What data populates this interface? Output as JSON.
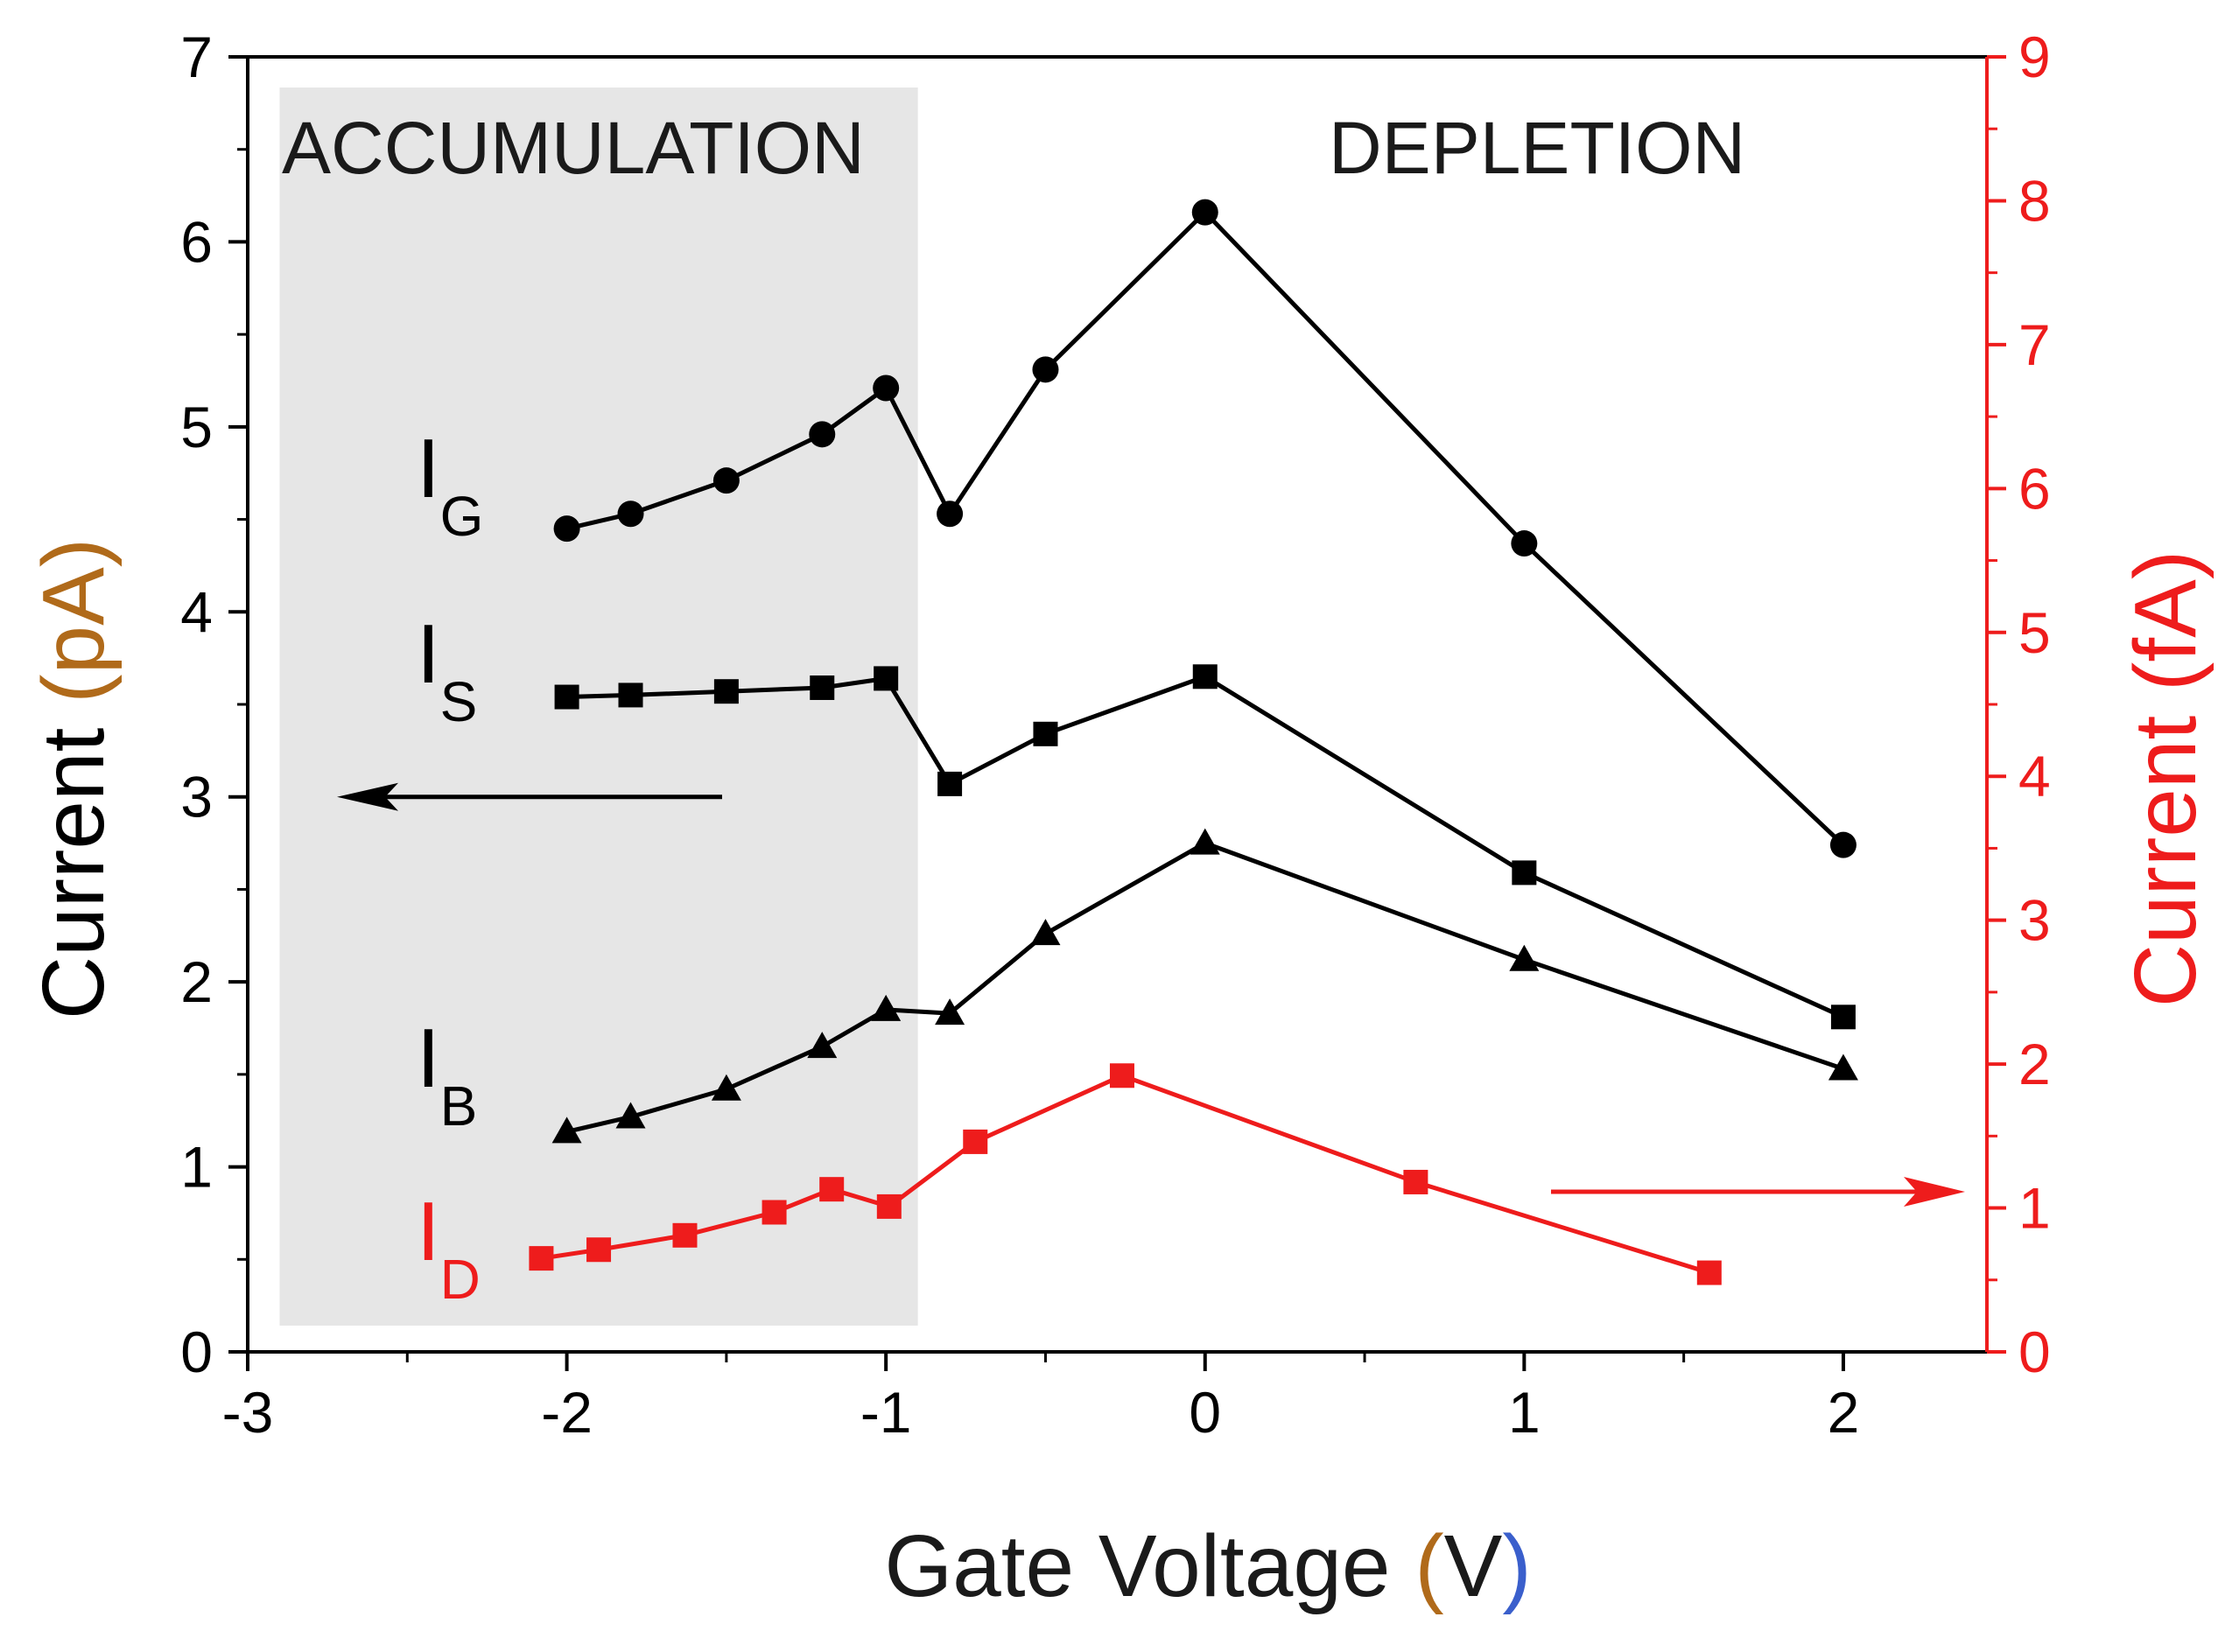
{
  "chart_data": {
    "type": "line",
    "xlabel": {
      "main": "Gate Voltage ",
      "open": "(",
      "unit": "V",
      "close": ")"
    },
    "ylabel_left": {
      "main": "Current ",
      "unit": "(pA)"
    },
    "ylabel_right": {
      "main": "Current ",
      "unit": "(fA)"
    },
    "xlim": [
      -3,
      2.45
    ],
    "ylim_left": [
      0,
      7
    ],
    "ylim_right": [
      0,
      9
    ],
    "x_ticks": [
      -3,
      -2,
      -1,
      0,
      1,
      2
    ],
    "x_tick_labels": [
      "-3",
      "-2",
      "-1",
      "0",
      "1",
      "2"
    ],
    "y_left_ticks": [
      0,
      1,
      2,
      3,
      4,
      5,
      6,
      7
    ],
    "y_left_tick_labels": [
      "0",
      "1",
      "2",
      "3",
      "4",
      "5",
      "6",
      "7"
    ],
    "y_right_ticks": [
      0,
      1,
      2,
      3,
      4,
      5,
      6,
      7,
      8,
      9
    ],
    "y_right_tick_labels": [
      "0",
      "1",
      "2",
      "3",
      "4",
      "5",
      "6",
      "7",
      "8",
      "9"
    ],
    "shaded_region": {
      "label": "ACCUMULATION",
      "x_range": [
        -2.9,
        -0.9
      ],
      "color": "#e6e6e6"
    },
    "region_labels": [
      "ACCUMULATION",
      "DEPLETION"
    ],
    "series": [
      {
        "name": "IG",
        "label_main": "I",
        "label_sub": "G",
        "axis": "left",
        "marker": "circle",
        "color": "#000000",
        "x": [
          -2,
          -1.8,
          -1.5,
          -1.2,
          -1,
          -0.8,
          -0.5,
          0,
          1,
          2
        ],
        "y": [
          4.45,
          4.53,
          4.71,
          4.96,
          5.21,
          4.53,
          5.31,
          6.16,
          4.37,
          2.74
        ]
      },
      {
        "name": "IS",
        "label_main": "I",
        "label_sub": "S",
        "axis": "left",
        "marker": "square",
        "color": "#000000",
        "x": [
          -2,
          -1.8,
          -1.5,
          -1.2,
          -1,
          -0.8,
          -0.5,
          0,
          1,
          2
        ],
        "y": [
          3.54,
          3.55,
          3.57,
          3.59,
          3.64,
          3.07,
          3.34,
          3.65,
          2.59,
          1.81
        ]
      },
      {
        "name": "IB",
        "label_main": "I",
        "label_sub": "B",
        "axis": "left",
        "marker": "triangle",
        "color": "#000000",
        "x": [
          -2,
          -1.8,
          -1.5,
          -1.2,
          -1,
          -0.8,
          -0.5,
          0,
          1,
          2
        ],
        "y": [
          1.19,
          1.27,
          1.42,
          1.65,
          1.85,
          1.83,
          2.26,
          2.75,
          2.12,
          1.53
        ]
      },
      {
        "name": "ID",
        "label_main": "I",
        "label_sub": "D",
        "axis": "right",
        "marker": "square",
        "color": "#ee1c1c",
        "x": [
          -2.08,
          -1.9,
          -1.63,
          -1.35,
          -1.17,
          -0.99,
          -0.72,
          -0.26,
          0.66,
          1.58
        ],
        "y": [
          0.65,
          0.71,
          0.81,
          0.97,
          1.13,
          1.01,
          1.46,
          1.92,
          1.18,
          0.55
        ]
      }
    ],
    "arrows": [
      {
        "name": "left-axis-arrow",
        "direction": "left",
        "color": "#000000"
      },
      {
        "name": "right-axis-arrow",
        "direction": "right",
        "color": "#ee1c1c"
      }
    ]
  }
}
